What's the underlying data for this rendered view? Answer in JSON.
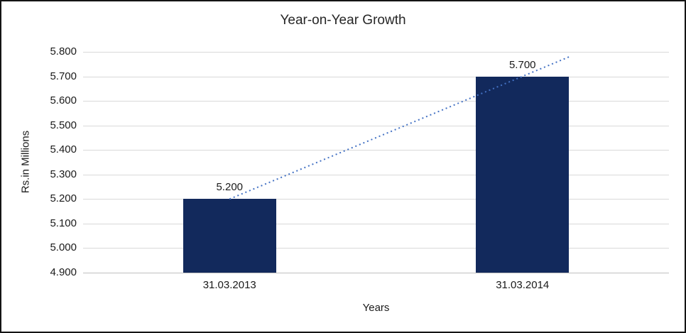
{
  "chart_data": {
    "type": "bar",
    "title": "Year-on-Year Growth",
    "categories": [
      "31.03.2013",
      "31.03.2014"
    ],
    "values": [
      5.2,
      5.7
    ],
    "value_labels": [
      "5.200",
      "5.700"
    ],
    "xlabel": "Years",
    "ylabel": "Rs.in Millions",
    "ylim": [
      4.9,
      5.8
    ],
    "ytick_step": 0.1,
    "ytick_labels": [
      "4.900",
      "5.000",
      "5.100",
      "5.200",
      "5.300",
      "5.400",
      "5.500",
      "5.600",
      "5.700",
      "5.800"
    ],
    "grid": true,
    "legend": "none",
    "bar_color": "#12295c",
    "trendline": {
      "type": "linear",
      "style": "dotted",
      "color": "#4472c4"
    }
  }
}
